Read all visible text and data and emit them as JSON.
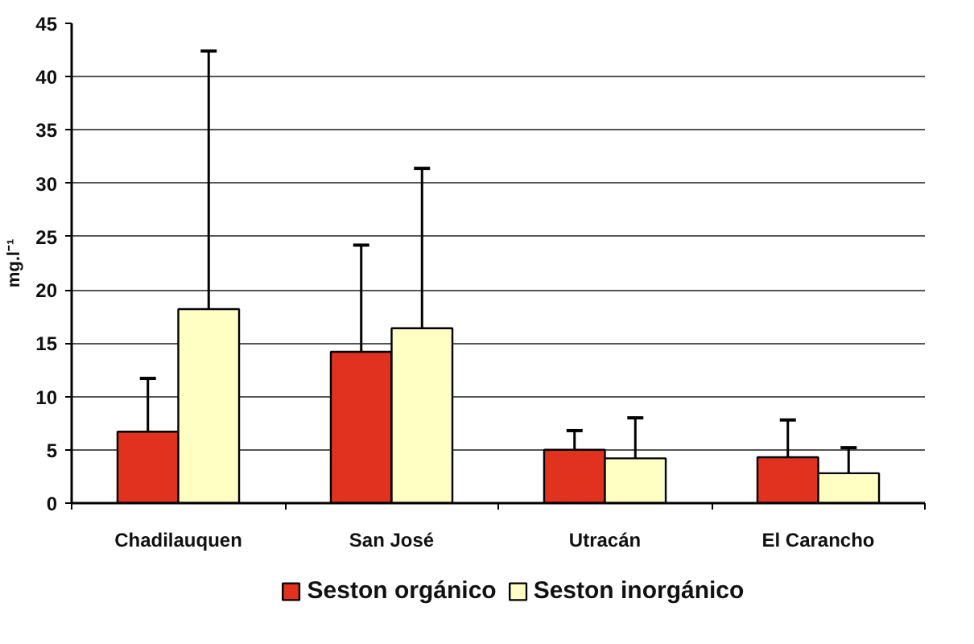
{
  "chart_data": {
    "type": "bar",
    "ylabel": "mg.l⁻¹",
    "categories": [
      "Chadilauquen",
      "San José",
      "Utracán",
      "El Carancho"
    ],
    "series": [
      {
        "name": "Seston orgánico",
        "color": "#e0321e",
        "values": [
          6.7,
          14.2,
          5.0,
          4.3
        ],
        "errors": [
          [
            6.7,
            11.7
          ],
          [
            14.2,
            24.2
          ],
          [
            5.0,
            6.8
          ],
          [
            4.3,
            7.8
          ]
        ]
      },
      {
        "name": "Seston inorgánico",
        "color": "#ffffc4",
        "values": [
          18.2,
          16.4,
          4.2,
          2.8
        ],
        "errors": [
          [
            18.2,
            42.4
          ],
          [
            16.4,
            31.4
          ],
          [
            4.2,
            8.0
          ],
          [
            2.8,
            5.2
          ]
        ]
      }
    ],
    "ylim": [
      0,
      45
    ],
    "yticks": [
      0,
      5,
      10,
      15,
      20,
      25,
      30,
      35,
      40,
      45
    ],
    "grid": "y",
    "legend": "bottom"
  }
}
